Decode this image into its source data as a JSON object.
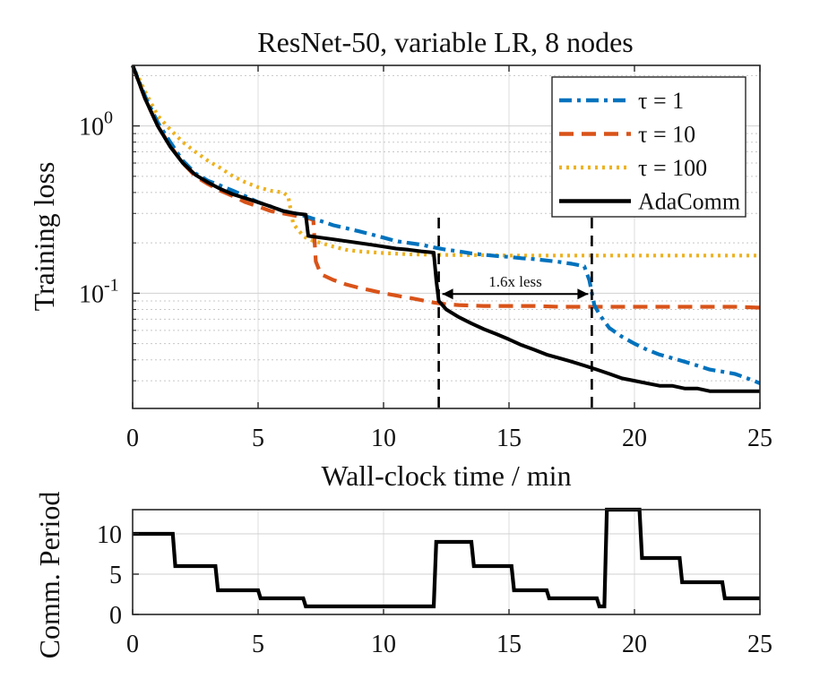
{
  "chart_data": [
    {
      "type": "line",
      "title": "ResNet-50, variable LR, 8 nodes",
      "xlabel": "Wall-clock time / min",
      "ylabel": "Training loss",
      "xlim": [
        0,
        25
      ],
      "ylim": [
        0.0205,
        2.3
      ],
      "yscale": "log",
      "xticks": [
        0,
        5,
        10,
        15,
        20,
        25
      ],
      "xtick_labels": [
        "0",
        "5",
        "10",
        "15",
        "20",
        "25"
      ],
      "ytick_labels": [
        {
          "base": "10",
          "exp": "0",
          "value": 1
        },
        {
          "base": "10",
          "exp": "-1",
          "value": 0.1
        }
      ],
      "grid": true,
      "legend_position": "top-right",
      "series": [
        {
          "name": "τ = 1",
          "color": "#0072BD",
          "dash": "dashdot",
          "x": [
            0,
            0.5,
            1,
            1.5,
            2,
            2.5,
            3,
            3.5,
            4,
            4.5,
            5,
            5.5,
            6,
            6.5,
            7,
            7.5,
            8,
            8.5,
            9,
            9.5,
            10,
            10.5,
            11,
            11.5,
            12,
            12.5,
            13,
            13.5,
            14,
            14.5,
            15,
            15.5,
            16,
            16.5,
            17,
            17.5,
            18,
            18.2,
            18.4,
            18.6,
            18.8,
            19,
            19.5,
            20,
            20.5,
            21,
            21.5,
            22,
            22.5,
            23,
            23.5,
            24,
            24.5,
            25
          ],
          "y": [
            2.3,
            1.5,
            1.05,
            0.8,
            0.62,
            0.52,
            0.47,
            0.44,
            0.41,
            0.38,
            0.35,
            0.33,
            0.31,
            0.3,
            0.285,
            0.27,
            0.255,
            0.245,
            0.235,
            0.225,
            0.215,
            0.205,
            0.2,
            0.195,
            0.188,
            0.182,
            0.178,
            0.173,
            0.17,
            0.167,
            0.165,
            0.162,
            0.16,
            0.157,
            0.154,
            0.15,
            0.145,
            0.12,
            0.085,
            0.075,
            0.068,
            0.062,
            0.055,
            0.05,
            0.046,
            0.043,
            0.041,
            0.039,
            0.037,
            0.035,
            0.034,
            0.033,
            0.031,
            0.029
          ]
        },
        {
          "name": "τ = 10",
          "color": "#D95319",
          "dash": "dashed",
          "x": [
            0,
            0.5,
            1,
            1.5,
            2,
            2.5,
            3,
            3.5,
            4,
            4.5,
            5,
            5.5,
            6,
            6.5,
            7,
            7.2,
            7.3,
            7.5,
            8,
            8.5,
            9,
            9.5,
            10,
            10.5,
            11,
            11.5,
            12,
            12.5,
            13,
            14,
            15,
            16,
            17,
            18,
            19,
            20,
            21,
            22,
            23,
            24,
            25
          ],
          "y": [
            2.3,
            1.45,
            1,
            0.76,
            0.6,
            0.5,
            0.45,
            0.41,
            0.38,
            0.35,
            0.33,
            0.31,
            0.3,
            0.29,
            0.28,
            0.275,
            0.155,
            0.13,
            0.12,
            0.113,
            0.108,
            0.104,
            0.1,
            0.097,
            0.094,
            0.091,
            0.088,
            0.086,
            0.085,
            0.084,
            0.084,
            0.084,
            0.083,
            0.083,
            0.083,
            0.083,
            0.083,
            0.083,
            0.083,
            0.083,
            0.082
          ]
        },
        {
          "name": "τ = 100",
          "color": "#EDB120",
          "dash": "dotted",
          "x": [
            0,
            0.5,
            1,
            1.5,
            2,
            2.5,
            3,
            3.5,
            4,
            4.5,
            5,
            5.5,
            6,
            6.2,
            6.4,
            6.8,
            7,
            7.5,
            8,
            8.5,
            9,
            10,
            11,
            12,
            13,
            14,
            15,
            16,
            17,
            18,
            19,
            20,
            21,
            22,
            23,
            24,
            25
          ],
          "y": [
            2.3,
            1.6,
            1.15,
            0.95,
            0.8,
            0.7,
            0.62,
            0.56,
            0.5,
            0.46,
            0.43,
            0.41,
            0.4,
            0.38,
            0.26,
            0.22,
            0.21,
            0.2,
            0.19,
            0.182,
            0.178,
            0.174,
            0.171,
            0.17,
            0.169,
            0.169,
            0.168,
            0.168,
            0.168,
            0.168,
            0.168,
            0.168,
            0.168,
            0.168,
            0.168,
            0.168,
            0.168
          ]
        },
        {
          "name": "AdaComm",
          "color": "#000000",
          "dash": "solid",
          "x": [
            0,
            0.5,
            1,
            1.5,
            2,
            2.5,
            3,
            3.5,
            4,
            4.5,
            5,
            5.5,
            6,
            6.5,
            6.9,
            7.0,
            7.5,
            8,
            8.5,
            9,
            9.5,
            10,
            10.5,
            11,
            11.5,
            12.0,
            12.1,
            12.2,
            12.5,
            13,
            13.5,
            14,
            14.5,
            15,
            15.5,
            16,
            16.5,
            17,
            17.5,
            18,
            18.5,
            19,
            19.5,
            20,
            20.5,
            21,
            21.5,
            22,
            22.5,
            23,
            23.5,
            24,
            24.5,
            25
          ],
          "y": [
            2.3,
            1.45,
            1,
            0.75,
            0.6,
            0.51,
            0.46,
            0.42,
            0.39,
            0.37,
            0.35,
            0.33,
            0.31,
            0.3,
            0.295,
            0.22,
            0.215,
            0.21,
            0.205,
            0.2,
            0.195,
            0.19,
            0.185,
            0.182,
            0.178,
            0.175,
            0.12,
            0.09,
            0.08,
            0.072,
            0.066,
            0.061,
            0.057,
            0.053,
            0.049,
            0.046,
            0.043,
            0.041,
            0.039,
            0.037,
            0.035,
            0.033,
            0.031,
            0.03,
            0.029,
            0.028,
            0.028,
            0.027,
            0.027,
            0.026,
            0.026,
            0.026,
            0.026,
            0.026
          ]
        }
      ],
      "annotations": [
        {
          "text": "1.6x less",
          "x_from": 12.2,
          "x_to": 18.3,
          "y": 0.099
        }
      ],
      "vlines": [
        12.2,
        18.3
      ]
    },
    {
      "type": "line",
      "title": "",
      "xlabel": "",
      "ylabel": "Comm. Period",
      "xlim": [
        0,
        25
      ],
      "ylim": [
        0,
        13
      ],
      "xticks": [
        0,
        5,
        10,
        15,
        20,
        25
      ],
      "xtick_labels": [
        "0",
        "5",
        "10",
        "15",
        "20",
        "25"
      ],
      "yticks": [
        0,
        5,
        10
      ],
      "ytick_labels": [
        "0",
        "5",
        "10"
      ],
      "grid": true,
      "series": [
        {
          "name": "AdaComm",
          "color": "#000000",
          "x": [
            0,
            1.6,
            1.7,
            3.3,
            3.4,
            5.0,
            5.1,
            6.8,
            6.9,
            12.0,
            12.1,
            13.5,
            13.6,
            15.1,
            15.2,
            16.5,
            16.6,
            18.5,
            18.6,
            18.8,
            18.9,
            20.2,
            20.3,
            21.8,
            21.9,
            23.5,
            23.6,
            25
          ],
          "y": [
            10,
            10,
            6,
            6,
            3,
            3,
            2,
            2,
            1,
            1,
            9,
            9,
            6,
            6,
            3,
            3,
            2,
            2,
            1,
            1,
            13,
            13,
            7,
            7,
            4,
            4,
            2,
            2
          ]
        }
      ]
    }
  ]
}
